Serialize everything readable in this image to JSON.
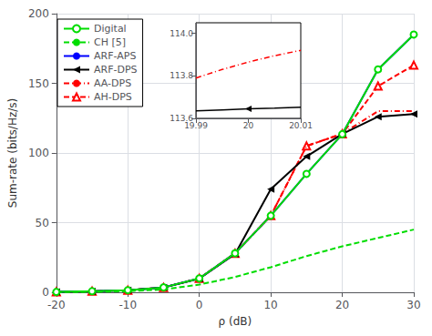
{
  "chart_data": [
    {
      "type": "line",
      "xlabel": "ρ (dB)",
      "ylabel": "Sum-rate (bits/Hz/s)",
      "x": [
        -20,
        -15,
        -10,
        -5,
        0,
        5,
        10,
        15,
        20,
        25,
        30
      ],
      "xlim": [
        -20,
        30
      ],
      "ylim": [
        0,
        200
      ],
      "xticks": [
        -20,
        -10,
        0,
        10,
        20,
        30
      ],
      "yticks": [
        0,
        50,
        100,
        150,
        200
      ],
      "grid": true,
      "legend": "upper left",
      "series": [
        {
          "name": "Digital",
          "color": "#00dd00",
          "line_style": "solid",
          "marker": "circle",
          "values": [
            0.3,
            0.8,
            1.5,
            3.5,
            10.0,
            28.0,
            55.0,
            85.0,
            113.5,
            160.0,
            185.0
          ]
        },
        {
          "name": "CH [5]",
          "color": "#00dd00",
          "line_style": "dashed",
          "values": [
            0.1,
            0.3,
            0.8,
            2.0,
            5.5,
            11.0,
            18.0,
            26.0,
            33.0,
            39.0,
            45.0
          ]
        },
        {
          "name": "ARF-APS",
          "color": "#0000ff",
          "line_style": "solid",
          "values": [
            0.3,
            0.8,
            1.5,
            3.5,
            10.0,
            28.0,
            55.0,
            85.0,
            113.5,
            160.0,
            185.0
          ]
        },
        {
          "name": "ARF-DPS",
          "color": "#000000",
          "line_style": "solid",
          "marker": "triangle-left",
          "values": [
            0.3,
            0.7,
            1.4,
            3.4,
            9.8,
            27.5,
            74.0,
            97.5,
            113.65,
            126.0,
            128.0
          ]
        },
        {
          "name": "AA-DPS",
          "color": "#ff0000",
          "line_style": "dash-dot",
          "values": [
            0.3,
            0.8,
            1.5,
            3.5,
            10.0,
            28.0,
            55.0,
            105.0,
            113.88,
            130.0,
            130.0
          ]
        },
        {
          "name": "AH-DPS",
          "color": "#ff0000",
          "line_style": "dashed",
          "marker": "triangle",
          "values": [
            0.3,
            0.8,
            1.5,
            3.5,
            10.0,
            28.0,
            55.0,
            105.0,
            113.75,
            148.0,
            163.0
          ]
        }
      ]
    },
    {
      "type": "line",
      "x": [
        19.99,
        19.995,
        20.0,
        20.005,
        20.01
      ],
      "xlim": [
        19.99,
        20.01
      ],
      "ylim": [
        113.6,
        114.05
      ],
      "xticks": [
        19.99,
        20,
        20.01
      ],
      "yticks": [
        113.6,
        113.8,
        {
          "value": 114,
          "label": "114.0"
        }
      ],
      "grid": false,
      "series": [
        {
          "color": "#ff0000",
          "line_style": "dash-dot",
          "values": [
            113.79,
            113.83,
            113.865,
            113.895,
            113.92
          ]
        },
        {
          "color": "#000000",
          "line_style": "solid",
          "marker": "triangle-left",
          "values": [
            113.635,
            113.64,
            113.645,
            113.648,
            113.652
          ]
        }
      ]
    }
  ]
}
